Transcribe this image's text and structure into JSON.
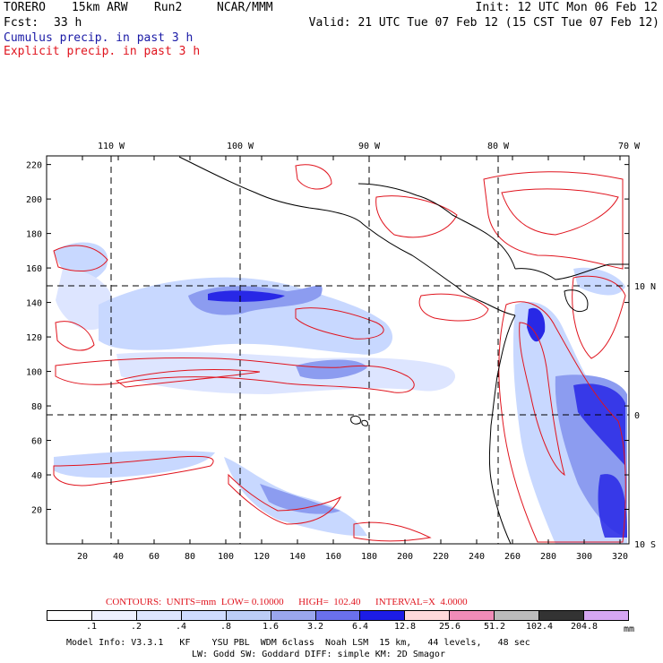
{
  "header": {
    "model": "TORERO",
    "resolution": "15km ARW",
    "run": "Run2",
    "org": "NCAR/MMM",
    "init": "Init: 12 UTC Mon 06 Feb 12",
    "fcst_label": "Fcst:",
    "fcst_value": "33 h",
    "valid": "Valid: 21 UTC Tue 07 Feb 12 (15 CST Tue 07 Feb 12)",
    "cumulus": "Cumulus precip. in past 3 h",
    "explicit": "Explicit precip. in past 3 h"
  },
  "map": {
    "top_lon_labels": [
      "110 W",
      "100 W",
      "90 W",
      "80 W",
      "70 W"
    ],
    "right_lat_labels": [
      "10 N",
      "0",
      "10 S"
    ],
    "y_ticks": [
      220,
      200,
      180,
      160,
      140,
      120,
      100,
      80,
      60,
      40,
      20
    ],
    "x_ticks": [
      20,
      40,
      60,
      80,
      100,
      120,
      140,
      160,
      180,
      200,
      220,
      240,
      260,
      280,
      300,
      320
    ],
    "colors": {
      "coastline": "#000000",
      "explicit_contour": "#e0141e",
      "cumulus_light": "#c8d8ff",
      "cumulus_mid": "#8c9cf0",
      "cumulus_heavy": "#2828e6"
    }
  },
  "footer": {
    "contours": "CONTOURS:  UNITS=mm  LOW= 0.10000      HIGH=  102.40      INTERVAL=X  4.0000",
    "legend": {
      "labels": [
        ".1",
        ".2",
        ".4",
        ".8",
        "1.6",
        "3.2",
        "6.4",
        "12.8",
        "25.6",
        "51.2",
        "102.4",
        "204.8"
      ],
      "colors": [
        "#ffffff",
        "#eef0ff",
        "#dde5ff",
        "#cfdcff",
        "#bccdf6",
        "#9aa6ee",
        "#6a70ec",
        "#1c1ce6",
        "#ffd9da",
        "#f08cb8",
        "#bbbbbb",
        "#333333",
        "#d6a6f2"
      ],
      "unit": "mm"
    },
    "model_info": "Model Info: V3.3.1   KF    YSU PBL  WDM 6class  Noah LSM  15 km,   44 levels,   48 sec",
    "physics": "LW: Godd SW: Goddard DIFF: simple KM: 2D Smagor"
  }
}
